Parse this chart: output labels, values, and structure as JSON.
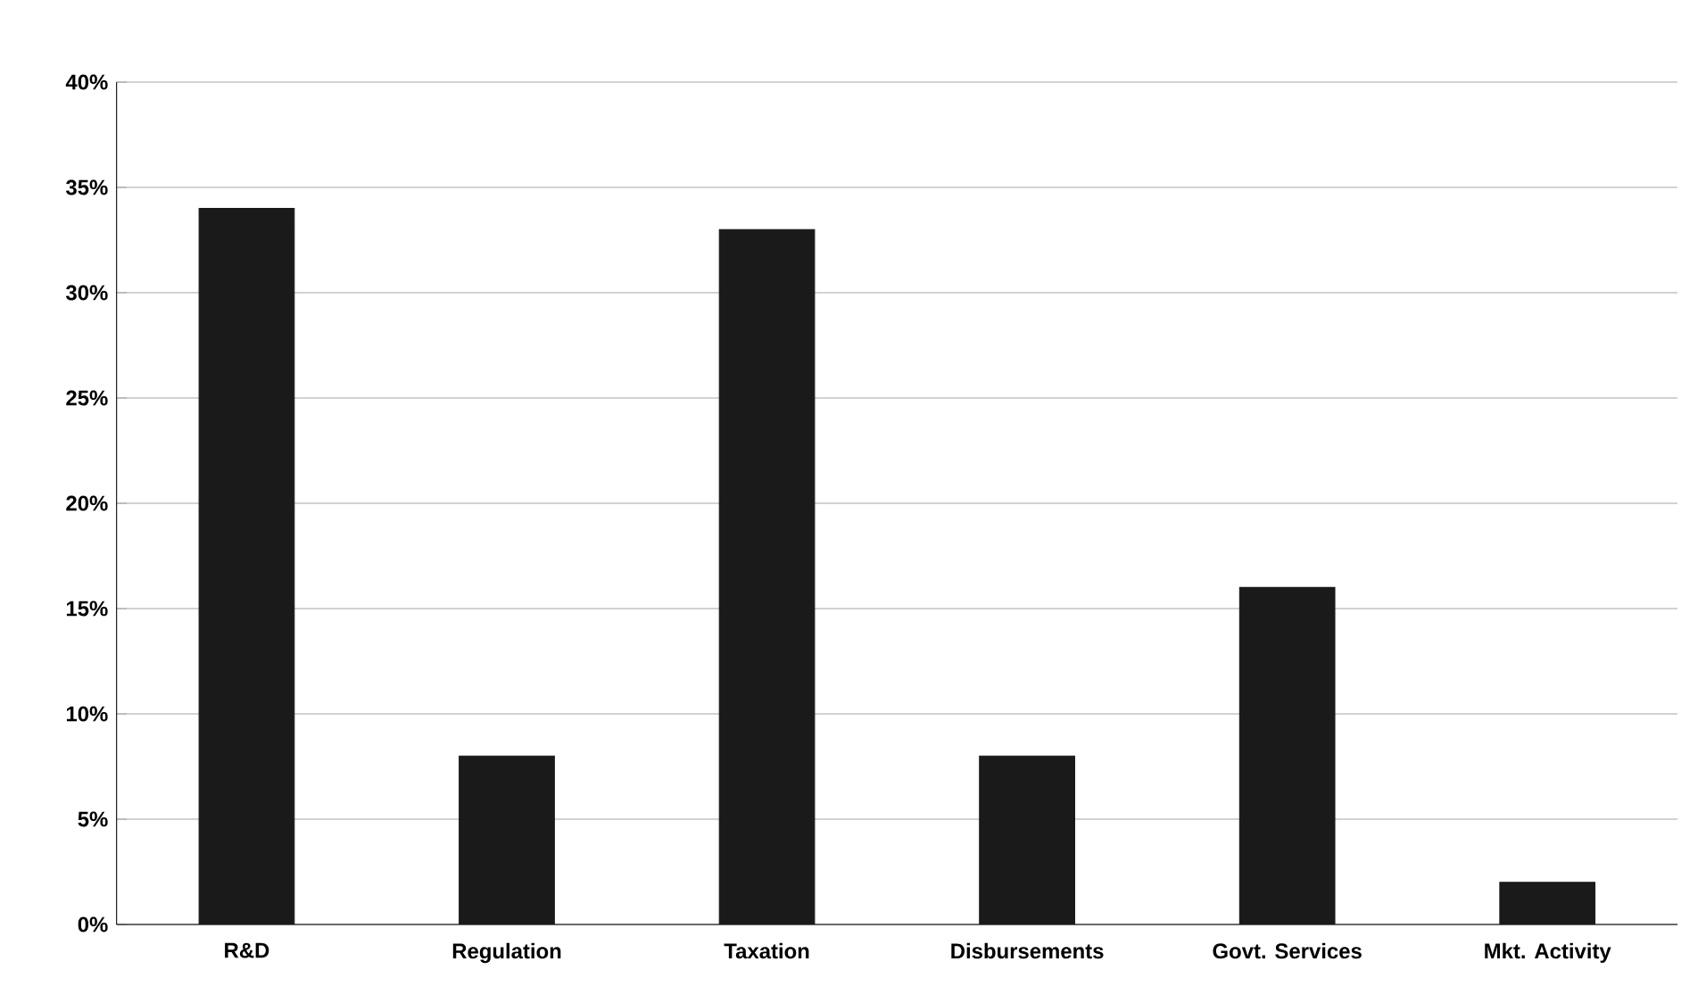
{
  "chart_data": {
    "type": "bar",
    "categories": [
      "R&D",
      "Regulation",
      "Taxation",
      "Disbursements",
      "Govt. Services",
      "Mkt. Activity"
    ],
    "values": [
      34,
      8,
      33,
      8,
      16,
      2
    ],
    "color": "#1a1a1a",
    "ylim": [
      0,
      40
    ],
    "yticks": [
      {
        "value": 0,
        "label": "0%"
      },
      {
        "value": 5,
        "label": "5%"
      },
      {
        "value": 10,
        "label": "10%"
      },
      {
        "value": 15,
        "label": "15%"
      },
      {
        "value": 20,
        "label": "20%"
      },
      {
        "value": 25,
        "label": "25%"
      },
      {
        "value": 30,
        "label": "30%"
      },
      {
        "value": 35,
        "label": "35%"
      },
      {
        "value": 40,
        "label": "40%"
      }
    ],
    "grid": "y"
  }
}
